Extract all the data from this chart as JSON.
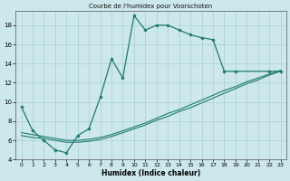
{
  "title": "Courbe de l'humidex pour Voorschoten",
  "xlabel": "Humidex (Indice chaleur)",
  "background_color": "#cce8ec",
  "line_color": "#1e7b6e",
  "grid_color": "#aacfd4",
  "xlim": [
    -0.5,
    23.5
  ],
  "ylim": [
    4,
    19.5
  ],
  "xticks": [
    0,
    1,
    2,
    3,
    4,
    5,
    6,
    7,
    8,
    9,
    10,
    11,
    12,
    13,
    14,
    15,
    16,
    17,
    18,
    19,
    20,
    21,
    22,
    23
  ],
  "yticks": [
    4,
    6,
    8,
    10,
    12,
    14,
    16,
    18
  ],
  "curve_x": [
    0,
    1,
    2,
    3,
    4,
    5,
    6,
    7,
    8,
    9,
    10,
    11,
    12,
    13,
    14,
    15,
    16,
    17,
    18,
    19,
    22,
    23
  ],
  "curve_y": [
    9.5,
    7.0,
    6.0,
    5.0,
    4.7,
    6.5,
    7.2,
    10.5,
    14.5,
    12.5,
    19.0,
    17.5,
    18.0,
    18.0,
    17.5,
    17.0,
    16.7,
    16.5,
    13.2,
    13.2,
    13.2,
    13.2
  ],
  "line2_x": [
    0,
    1,
    2,
    3,
    4,
    5,
    6,
    7,
    8,
    9,
    10,
    11,
    12,
    13,
    14,
    15,
    16,
    17,
    18,
    19,
    20,
    21,
    22,
    23
  ],
  "line2_y": [
    6.5,
    6.3,
    6.2,
    6.0,
    5.8,
    5.8,
    5.9,
    6.1,
    6.4,
    6.8,
    7.2,
    7.6,
    8.1,
    8.5,
    9.0,
    9.4,
    9.9,
    10.4,
    10.9,
    11.4,
    11.9,
    12.3,
    12.8,
    13.2
  ],
  "line3_x": [
    0,
    1,
    2,
    3,
    4,
    5,
    6,
    7,
    8,
    9,
    10,
    11,
    12,
    13,
    14,
    15,
    16,
    17,
    18,
    19,
    20,
    21,
    22,
    23
  ],
  "line3_y": [
    6.8,
    6.6,
    6.4,
    6.2,
    6.0,
    6.0,
    6.1,
    6.3,
    6.6,
    7.0,
    7.4,
    7.8,
    8.3,
    8.8,
    9.2,
    9.7,
    10.2,
    10.7,
    11.2,
    11.6,
    12.1,
    12.5,
    12.9,
    13.3
  ]
}
